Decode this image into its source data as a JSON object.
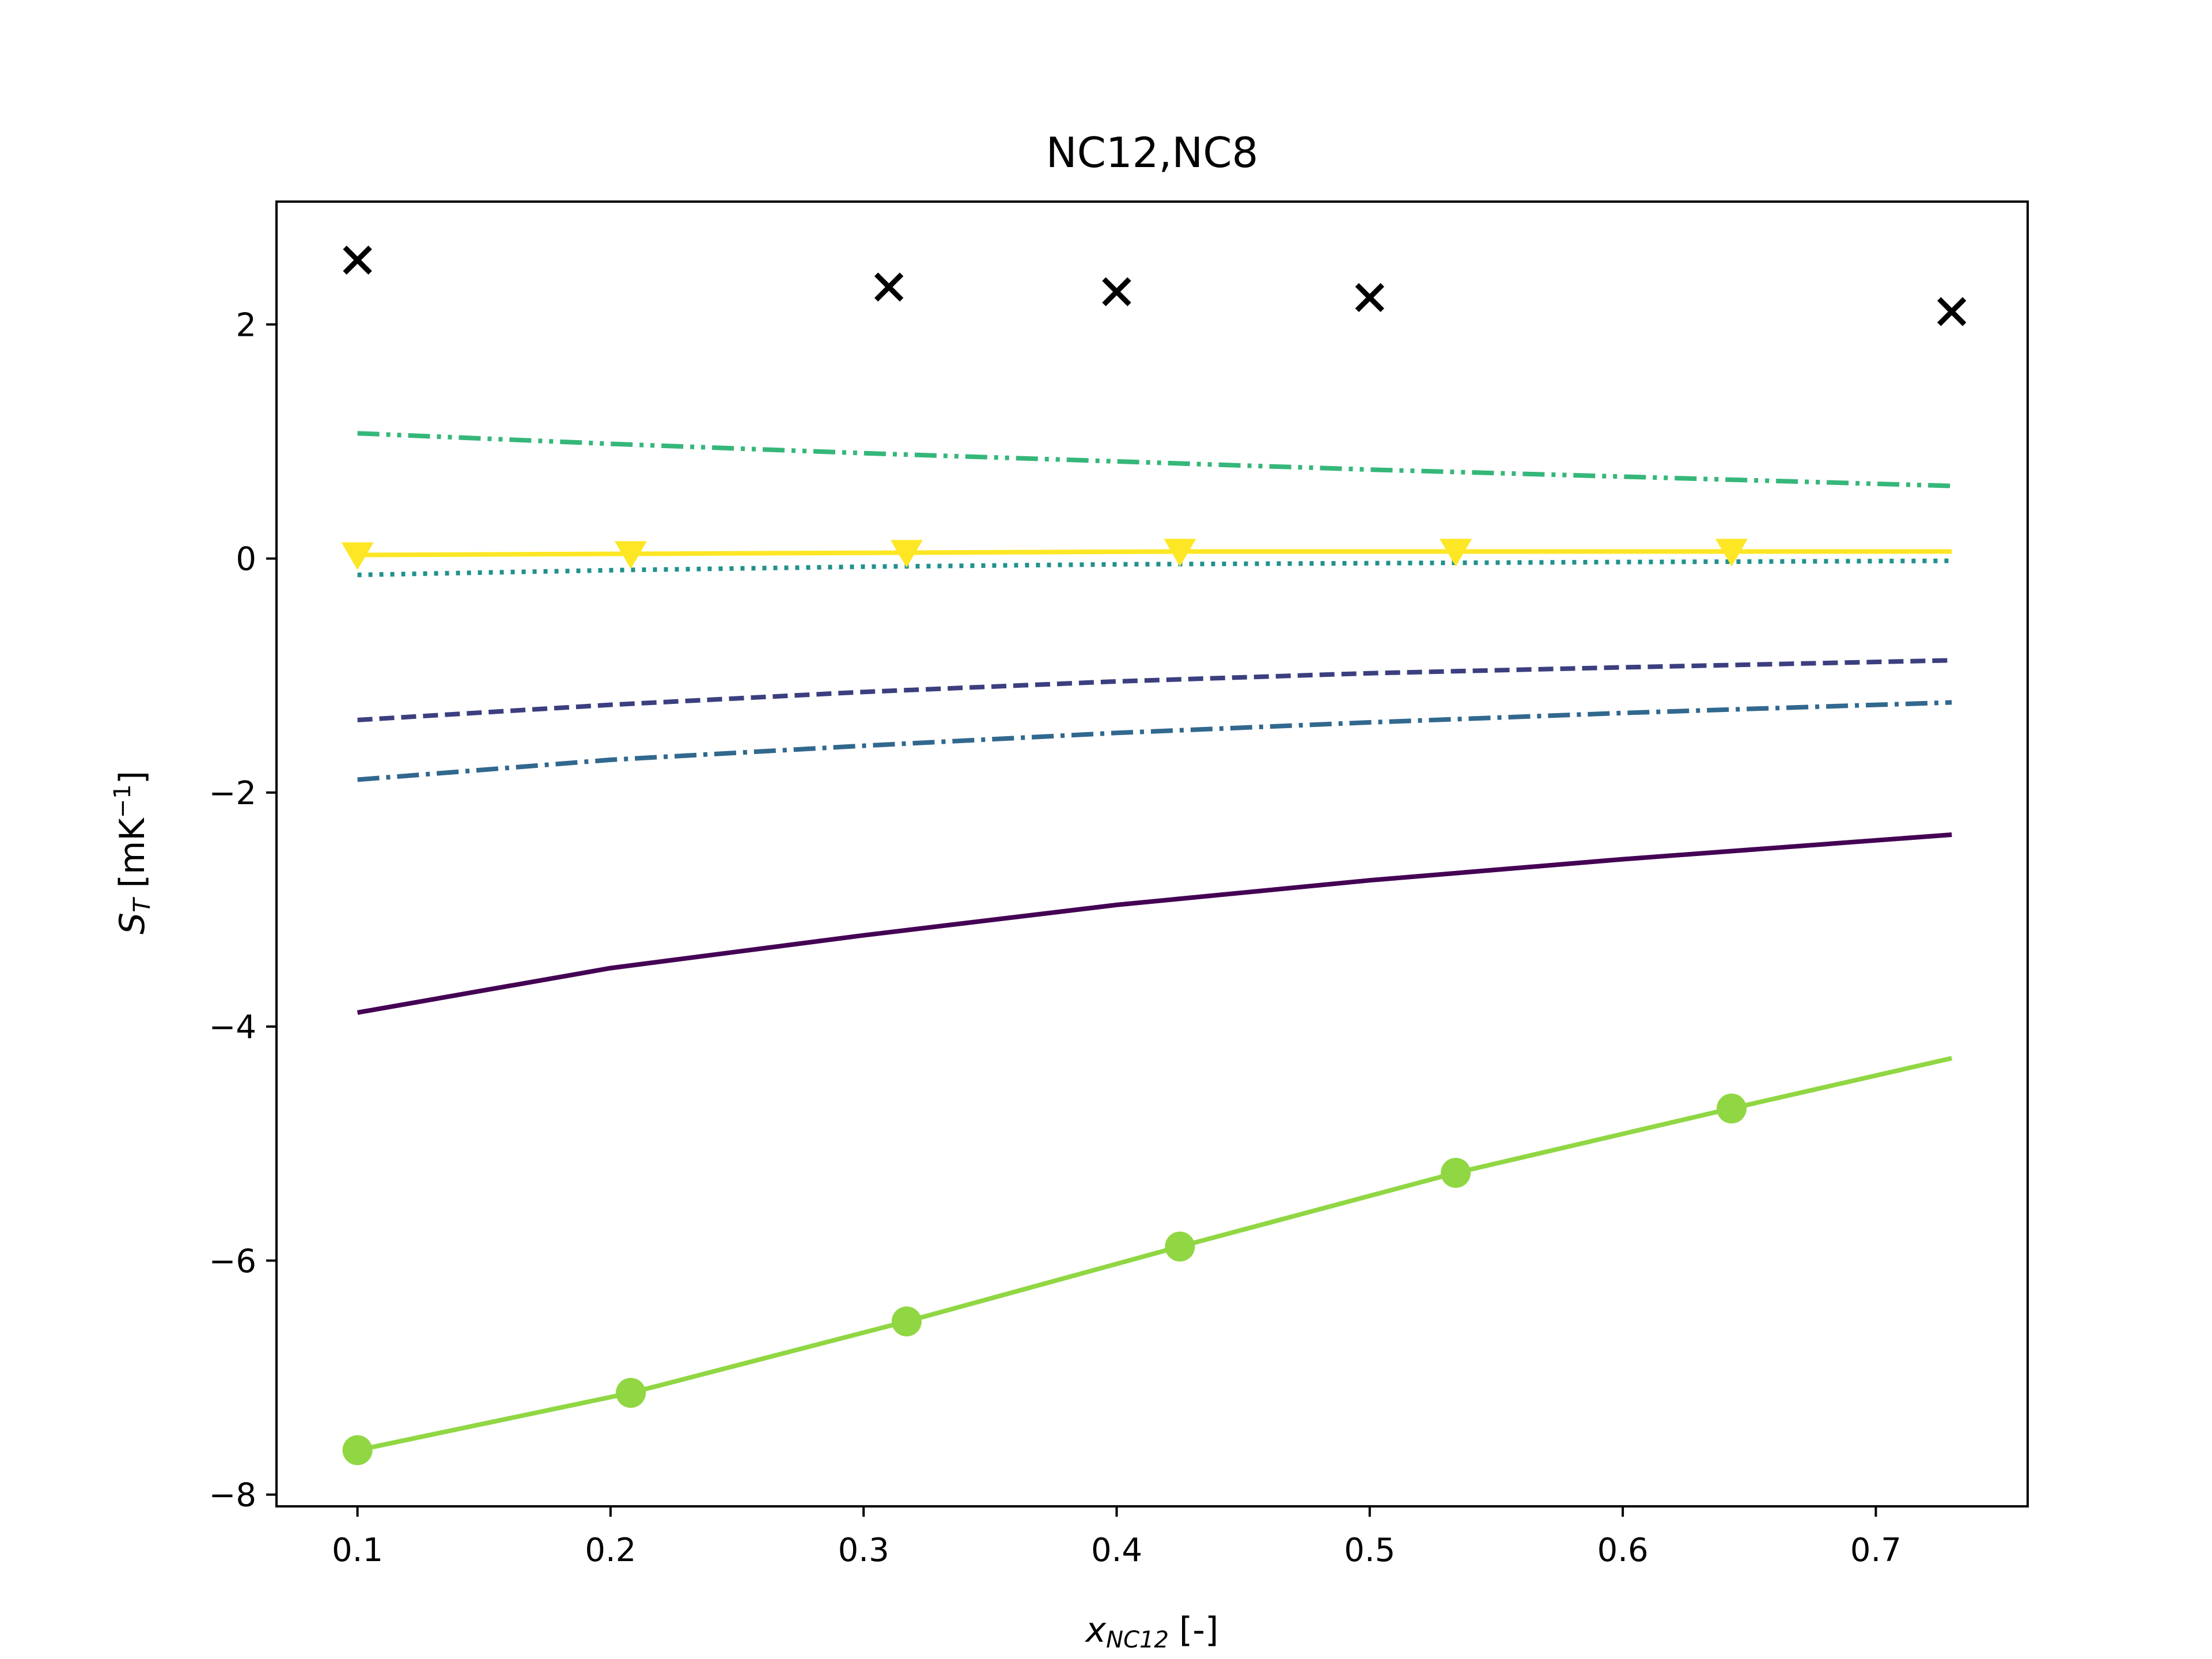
{
  "chart_data": {
    "type": "line",
    "title": "NC12,NC8",
    "xlabel": {
      "var": "x",
      "sub": "NC12",
      "unit": "[-]"
    },
    "ylabel": {
      "var": "S",
      "sub": "T",
      "unit_pre": "[mK",
      "unit_sup": "−1",
      "unit_post": "]"
    },
    "xlim": [
      0.068,
      0.76
    ],
    "ylim": [
      -8.1,
      3.05
    ],
    "xticks": [
      0.1,
      0.2,
      0.3,
      0.4,
      0.5,
      0.6,
      0.7
    ],
    "xtick_labels": [
      "0.1",
      "0.2",
      "0.3",
      "0.4",
      "0.5",
      "0.6",
      "0.7"
    ],
    "yticks": [
      -8,
      -6,
      -4,
      -2,
      0,
      2
    ],
    "ytick_labels": [
      "−8",
      "−6",
      "−4",
      "−2",
      "0",
      "2"
    ],
    "grid": false,
    "legend": "none",
    "series": [
      {
        "color": "#440154",
        "dash": "solid",
        "marker": "none",
        "x": [
          0.1,
          0.2,
          0.3,
          0.4,
          0.5,
          0.6,
          0.73
        ],
        "y": [
          -3.88,
          -3.5,
          -3.22,
          -2.96,
          -2.75,
          -2.57,
          -2.36
        ]
      },
      {
        "color": "#3b3f7f",
        "dash": "dashed",
        "marker": "none",
        "x": [
          0.1,
          0.2,
          0.3,
          0.4,
          0.5,
          0.6,
          0.73
        ],
        "y": [
          -1.38,
          -1.25,
          -1.14,
          -1.05,
          -0.98,
          -0.93,
          -0.87
        ]
      },
      {
        "color": "#31688e",
        "dash": "dashdot",
        "marker": "none",
        "x": [
          0.1,
          0.2,
          0.3,
          0.4,
          0.5,
          0.6,
          0.73
        ],
        "y": [
          -1.89,
          -1.72,
          -1.6,
          -1.49,
          -1.4,
          -1.32,
          -1.23
        ]
      },
      {
        "color": "#21918c",
        "dash": "dotted",
        "marker": "none",
        "x": [
          0.1,
          0.2,
          0.3,
          0.4,
          0.5,
          0.6,
          0.73
        ],
        "y": [
          -0.14,
          -0.1,
          -0.07,
          -0.05,
          -0.04,
          -0.03,
          -0.02
        ]
      },
      {
        "color": "#35b779",
        "dash": "dashdotdot",
        "marker": "none",
        "x": [
          0.1,
          0.2,
          0.3,
          0.4,
          0.5,
          0.6,
          0.73
        ],
        "y": [
          1.07,
          0.98,
          0.9,
          0.83,
          0.76,
          0.7,
          0.62
        ]
      },
      {
        "color": "#90d743",
        "dash": "solid",
        "marker": "circle",
        "x": [
          0.1,
          0.208,
          0.317,
          0.425,
          0.534,
          0.643,
          0.73
        ],
        "y": [
          -7.62,
          -7.13,
          -6.52,
          -5.88,
          -5.25,
          -4.7,
          -4.27
        ],
        "marker_x": [
          0.1,
          0.208,
          0.317,
          0.425,
          0.534,
          0.643
        ],
        "marker_y": [
          -7.62,
          -7.13,
          -6.52,
          -5.88,
          -5.25,
          -4.7
        ]
      },
      {
        "color": "#fde725",
        "dash": "solid",
        "marker": "triangle_down",
        "x": [
          0.1,
          0.208,
          0.317,
          0.425,
          0.534,
          0.643,
          0.73
        ],
        "y": [
          0.03,
          0.04,
          0.05,
          0.06,
          0.06,
          0.06,
          0.06
        ],
        "marker_x": [
          0.1,
          0.208,
          0.317,
          0.425,
          0.534,
          0.643
        ],
        "marker_y": [
          0.03,
          0.04,
          0.05,
          0.06,
          0.06,
          0.06
        ]
      },
      {
        "color": "#000000",
        "dash": "none",
        "marker": "x",
        "x": [
          0.1,
          0.31,
          0.4,
          0.5,
          0.73
        ],
        "y": [
          2.55,
          2.32,
          2.28,
          2.23,
          2.11
        ]
      }
    ]
  }
}
